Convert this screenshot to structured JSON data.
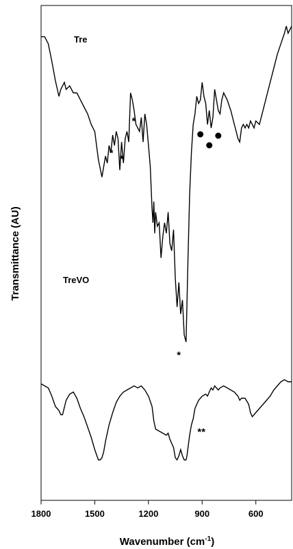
{
  "chart_data": {
    "type": "line",
    "title": "",
    "xlabel": "Wavenumber (cm",
    "xlabel_sup": "-1",
    "xlabel_close": ")",
    "ylabel": "Transmittance (AU)",
    "x_reversed": true,
    "xlim": [
      1800,
      400
    ],
    "xticks": [
      1800,
      1500,
      1200,
      900,
      600
    ],
    "xtick_labels": [
      "1800",
      "1500",
      "1200",
      "900",
      "600"
    ],
    "y_tick_labels": "none",
    "grid": false,
    "legend": "none",
    "line_color": "#000000",
    "series": [
      {
        "name": "Tre",
        "points": [
          [
            1800,
            0.95
          ],
          [
            1780,
            0.95
          ],
          [
            1760,
            0.93
          ],
          [
            1740,
            0.88
          ],
          [
            1720,
            0.825
          ],
          [
            1700,
            0.78
          ],
          [
            1690,
            0.8
          ],
          [
            1670,
            0.82
          ],
          [
            1660,
            0.8
          ],
          [
            1640,
            0.81
          ],
          [
            1620,
            0.79
          ],
          [
            1600,
            0.79
          ],
          [
            1580,
            0.77
          ],
          [
            1560,
            0.75
          ],
          [
            1540,
            0.73
          ],
          [
            1520,
            0.7
          ],
          [
            1500,
            0.68
          ],
          [
            1480,
            0.6
          ],
          [
            1460,
            0.55
          ],
          [
            1450,
            0.58
          ],
          [
            1440,
            0.61
          ],
          [
            1430,
            0.59
          ],
          [
            1420,
            0.64
          ],
          [
            1410,
            0.62
          ],
          [
            1400,
            0.67
          ],
          [
            1390,
            0.64
          ],
          [
            1380,
            0.68
          ],
          [
            1370,
            0.66
          ],
          [
            1360,
            0.57
          ],
          [
            1350,
            0.65
          ],
          [
            1340,
            0.59
          ],
          [
            1330,
            0.66
          ],
          [
            1320,
            0.68
          ],
          [
            1310,
            0.65
          ],
          [
            1300,
            0.79
          ],
          [
            1290,
            0.77
          ],
          [
            1280,
            0.74
          ],
          [
            1270,
            0.7
          ],
          [
            1260,
            0.69
          ],
          [
            1250,
            0.68
          ],
          [
            1240,
            0.72
          ],
          [
            1230,
            0.65
          ],
          [
            1220,
            0.73
          ],
          [
            1210,
            0.7
          ],
          [
            1200,
            0.64
          ],
          [
            1190,
            0.58
          ],
          [
            1180,
            0.46
          ],
          [
            1175,
            0.42
          ],
          [
            1170,
            0.48
          ],
          [
            1165,
            0.39
          ],
          [
            1160,
            0.45
          ],
          [
            1150,
            0.41
          ],
          [
            1140,
            0.42
          ],
          [
            1130,
            0.32
          ],
          [
            1120,
            0.38
          ],
          [
            1110,
            0.42
          ],
          [
            1100,
            0.39
          ],
          [
            1090,
            0.45
          ],
          [
            1080,
            0.36
          ],
          [
            1070,
            0.34
          ],
          [
            1060,
            0.4
          ],
          [
            1050,
            0.26
          ],
          [
            1040,
            0.18
          ],
          [
            1030,
            0.25
          ],
          [
            1020,
            0.16
          ],
          [
            1010,
            0.2
          ],
          [
            1000,
            0.1
          ],
          [
            990,
            0.08
          ],
          [
            980,
            0.3
          ],
          [
            970,
            0.5
          ],
          [
            960,
            0.62
          ],
          [
            950,
            0.7
          ],
          [
            940,
            0.73
          ],
          [
            930,
            0.78
          ],
          [
            920,
            0.76
          ],
          [
            910,
            0.77
          ],
          [
            900,
            0.82
          ],
          [
            890,
            0.78
          ],
          [
            880,
            0.76
          ],
          [
            870,
            0.7
          ],
          [
            860,
            0.74
          ],
          [
            850,
            0.69
          ],
          [
            840,
            0.72
          ],
          [
            830,
            0.8
          ],
          [
            820,
            0.77
          ],
          [
            810,
            0.74
          ],
          [
            800,
            0.73
          ],
          [
            790,
            0.77
          ],
          [
            780,
            0.79
          ],
          [
            760,
            0.77
          ],
          [
            740,
            0.74
          ],
          [
            720,
            0.7
          ],
          [
            710,
            0.68
          ],
          [
            700,
            0.66
          ],
          [
            690,
            0.65
          ],
          [
            680,
            0.69
          ],
          [
            670,
            0.7
          ],
          [
            660,
            0.69
          ],
          [
            650,
            0.7
          ],
          [
            640,
            0.69
          ],
          [
            630,
            0.71
          ],
          [
            620,
            0.7
          ],
          [
            610,
            0.69
          ],
          [
            600,
            0.71
          ],
          [
            580,
            0.7
          ],
          [
            560,
            0.74
          ],
          [
            540,
            0.78
          ],
          [
            520,
            0.82
          ],
          [
            500,
            0.86
          ],
          [
            480,
            0.9
          ],
          [
            460,
            0.93
          ],
          [
            440,
            0.96
          ],
          [
            430,
            0.98
          ],
          [
            420,
            0.96
          ],
          [
            410,
            0.97
          ],
          [
            400,
            0.98
          ]
        ]
      },
      {
        "name": "TreVO",
        "points": [
          [
            1800,
            0.4
          ],
          [
            1780,
            0.39
          ],
          [
            1760,
            0.38
          ],
          [
            1740,
            0.34
          ],
          [
            1720,
            0.29
          ],
          [
            1700,
            0.27
          ],
          [
            1690,
            0.25
          ],
          [
            1680,
            0.25
          ],
          [
            1660,
            0.32
          ],
          [
            1640,
            0.35
          ],
          [
            1620,
            0.36
          ],
          [
            1600,
            0.33
          ],
          [
            1580,
            0.28
          ],
          [
            1560,
            0.24
          ],
          [
            1540,
            0.19
          ],
          [
            1520,
            0.14
          ],
          [
            1500,
            0.08
          ],
          [
            1480,
            0.03
          ],
          [
            1470,
            0.03
          ],
          [
            1460,
            0.04
          ],
          [
            1450,
            0.07
          ],
          [
            1440,
            0.12
          ],
          [
            1420,
            0.2
          ],
          [
            1400,
            0.26
          ],
          [
            1380,
            0.31
          ],
          [
            1360,
            0.34
          ],
          [
            1340,
            0.36
          ],
          [
            1320,
            0.37
          ],
          [
            1300,
            0.38
          ],
          [
            1280,
            0.39
          ],
          [
            1260,
            0.38
          ],
          [
            1240,
            0.39
          ],
          [
            1220,
            0.37
          ],
          [
            1200,
            0.34
          ],
          [
            1180,
            0.29
          ],
          [
            1170,
            0.22
          ],
          [
            1160,
            0.18
          ],
          [
            1140,
            0.17
          ],
          [
            1120,
            0.16
          ],
          [
            1100,
            0.15
          ],
          [
            1090,
            0.16
          ],
          [
            1080,
            0.13
          ],
          [
            1060,
            0.09
          ],
          [
            1050,
            0.04
          ],
          [
            1040,
            0.03
          ],
          [
            1030,
            0.05
          ],
          [
            1020,
            0.08
          ],
          [
            1010,
            0.05
          ],
          [
            1000,
            0.03
          ],
          [
            990,
            0.03
          ],
          [
            985,
            0.05
          ],
          [
            970,
            0.15
          ],
          [
            960,
            0.2
          ],
          [
            950,
            0.23
          ],
          [
            940,
            0.28
          ],
          [
            920,
            0.32
          ],
          [
            900,
            0.34
          ],
          [
            880,
            0.35
          ],
          [
            870,
            0.34
          ],
          [
            860,
            0.36
          ],
          [
            850,
            0.38
          ],
          [
            840,
            0.37
          ],
          [
            830,
            0.39
          ],
          [
            820,
            0.38
          ],
          [
            810,
            0.37
          ],
          [
            800,
            0.38
          ],
          [
            780,
            0.39
          ],
          [
            760,
            0.38
          ],
          [
            740,
            0.37
          ],
          [
            720,
            0.36
          ],
          [
            700,
            0.34
          ],
          [
            690,
            0.32
          ],
          [
            680,
            0.33
          ],
          [
            660,
            0.33
          ],
          [
            640,
            0.3
          ],
          [
            630,
            0.26
          ],
          [
            620,
            0.24
          ],
          [
            610,
            0.25
          ],
          [
            600,
            0.26
          ],
          [
            590,
            0.27
          ],
          [
            580,
            0.28
          ],
          [
            560,
            0.3
          ],
          [
            540,
            0.32
          ],
          [
            520,
            0.34
          ],
          [
            500,
            0.37
          ],
          [
            480,
            0.39
          ],
          [
            460,
            0.41
          ],
          [
            440,
            0.42
          ],
          [
            420,
            0.41
          ],
          [
            400,
            0.41
          ]
        ]
      }
    ],
    "annotations": [
      {
        "text": "*",
        "near_series": "Tre",
        "x": 1385
      },
      {
        "text": "*",
        "near_series": "Tre",
        "x": 1305
      },
      {
        "text": "*",
        "near_series": "Tre",
        "x": 1350
      },
      {
        "text": "*",
        "near_series": "Tre",
        "x": 1000
      },
      {
        "text": "**",
        "near_series": "TreVO",
        "x": 950
      }
    ],
    "markers": [
      {
        "symbol": "dot",
        "x": 910
      },
      {
        "symbol": "dot",
        "x": 860
      },
      {
        "symbol": "dot",
        "x": 810
      }
    ]
  }
}
